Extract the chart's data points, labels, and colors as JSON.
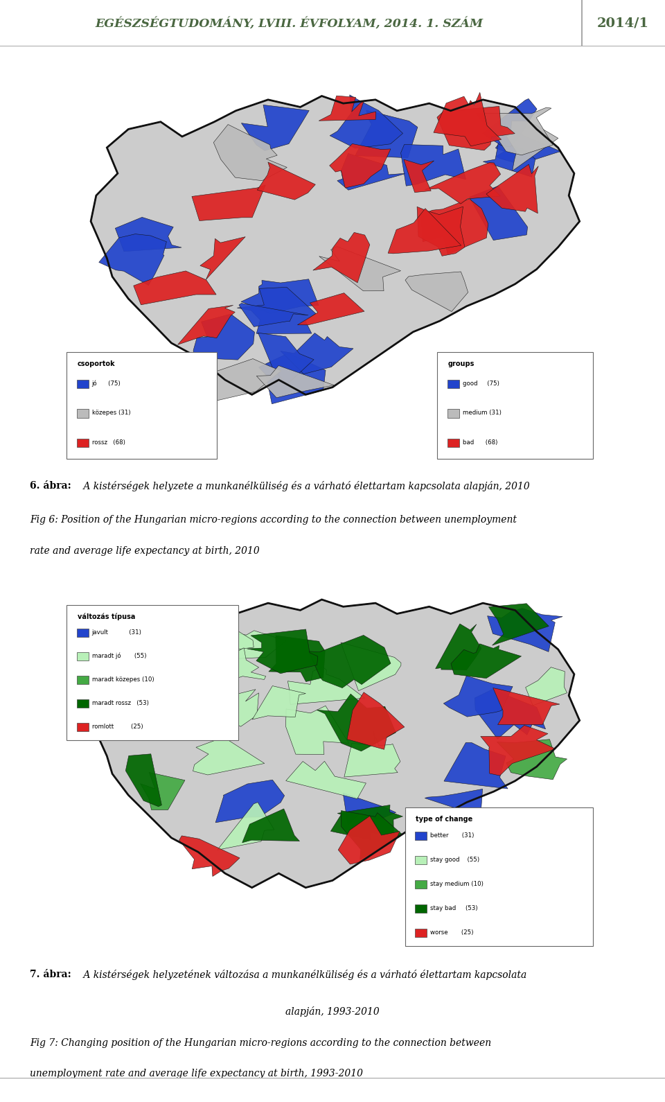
{
  "header_text": "EGÉSZSÉGTUDOMÁNY, LVIII. ÉVFOLYAM, 2014. 1. SZÁM",
  "header_right": "2014/1",
  "header_bg": "#eeeeee",
  "header_text_color": "#4a6741",
  "header_border_color": "#aaaaaa",
  "page_bg": "#ffffff",
  "caption6_bold": "6. ábra:",
  "caption6_rest": " A kistérségek helyzete a munkanélküliség és a várható élettartam kapcsolata alapján, 2010",
  "caption6_line2": "Fig 6: Position of the Hungarian micro-regions according to the connection between unemployment",
  "caption6_line3": "rate and average life expectancy at birth, 2010",
  "caption7_bold": "7. ábra:",
  "caption7_rest": " A kistérségek helyzetének változása a munkanélküliség és a várható élettartam kapcsolata",
  "caption7_line2": "alapján, 1993-2010",
  "caption7_line3": "Fig 7: Changing position of the Hungarian micro-regions according to the connection between",
  "caption7_line4": "unemployment rate and average life expectancy at birth, 1993-2010",
  "map1_bg": "#ffffff",
  "map2_bg": "#ffffff",
  "map1_legend_title_hu": "csoportok",
  "map1_legend_title_en": "groups",
  "map1_legend_hu": [
    [
      "#2244cc",
      "jó",
      "     (75)"
    ],
    [
      "#bbbbbb",
      "közepes",
      "(31)"
    ],
    [
      "#dd2222",
      "rossz",
      "  (68)"
    ]
  ],
  "map1_legend_en": [
    [
      "#2244cc",
      "good",
      "    (75)"
    ],
    [
      "#bbbbbb",
      "medium",
      "(31)"
    ],
    [
      "#dd2222",
      "bad",
      "     (68)"
    ]
  ],
  "map2_legend_title_hu": "változás típusa",
  "map2_legend_title_en": "type of change",
  "map2_legend_hu": [
    [
      "#2244cc",
      "javult",
      "          (31)"
    ],
    [
      "#b8f0b8",
      "maradt jó",
      "      (55)"
    ],
    [
      "#44aa44",
      "maradt közepes",
      "(10)"
    ],
    [
      "#006600",
      "maradt rossz",
      "  (53)"
    ],
    [
      "#dd2222",
      "romlott",
      "        (25)"
    ]
  ],
  "map2_legend_en": [
    [
      "#2244cc",
      "better",
      "      (31)"
    ],
    [
      "#b8f0b8",
      "stay good",
      "   (55)"
    ],
    [
      "#44aa44",
      "stay medium",
      "(10)"
    ],
    [
      "#006600",
      "stay bad",
      "    (53)"
    ],
    [
      "#dd2222",
      "worse",
      "      (25)"
    ]
  ],
  "hungary_outline_color": "#111111",
  "region_edge_color": "#111111"
}
